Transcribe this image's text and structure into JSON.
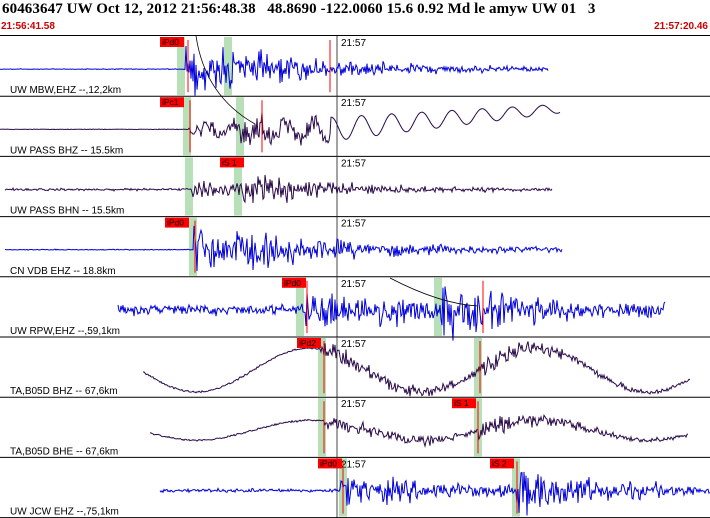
{
  "header": {
    "title": "60463647 UW Oct 12, 2012 21:56:48.38   48.8690 -122.0060 15.6 0.92 Md le amyw UW 01   3",
    "time_start": "21:56:41.58",
    "time_end": "21:57:20.46"
  },
  "minute_label": "21:57",
  "colors": {
    "blue_trace": "#0000dd",
    "purple_trace": "#2a0a4a",
    "pick_red": "#ff0000",
    "window_green": "#b8e0b8",
    "time_red": "#cc0000"
  },
  "traces": [
    {
      "label": "UW MBW,EHZ --,12,2km",
      "color": "blue",
      "picks": [
        "iPd0"
      ]
    },
    {
      "label": "UW PASS BHZ -- 15.5km",
      "color": "purple",
      "picks": [
        "iPc1"
      ]
    },
    {
      "label": "UW PASS BHN -- 15.5km",
      "color": "purple",
      "picks": [
        "iS 1"
      ]
    },
    {
      "label": "CN VDB EHZ -- 18.8km",
      "color": "blue",
      "picks": [
        "iPd0"
      ]
    },
    {
      "label": "UW RPW,EHZ --,59,1km",
      "color": "blue",
      "picks": [
        "iPd0"
      ]
    },
    {
      "label": "TA,B05D BHZ -- 67,6km",
      "color": "purple",
      "picks": [
        "iPd2"
      ]
    },
    {
      "label": "TA,B05D BHE -- 67,6km",
      "color": "purple",
      "picks": [
        "iS 1"
      ]
    },
    {
      "label": "UW JCW EHZ --,75,1km",
      "color": "blue",
      "picks": [
        "iPd0",
        "iS 2"
      ]
    }
  ]
}
